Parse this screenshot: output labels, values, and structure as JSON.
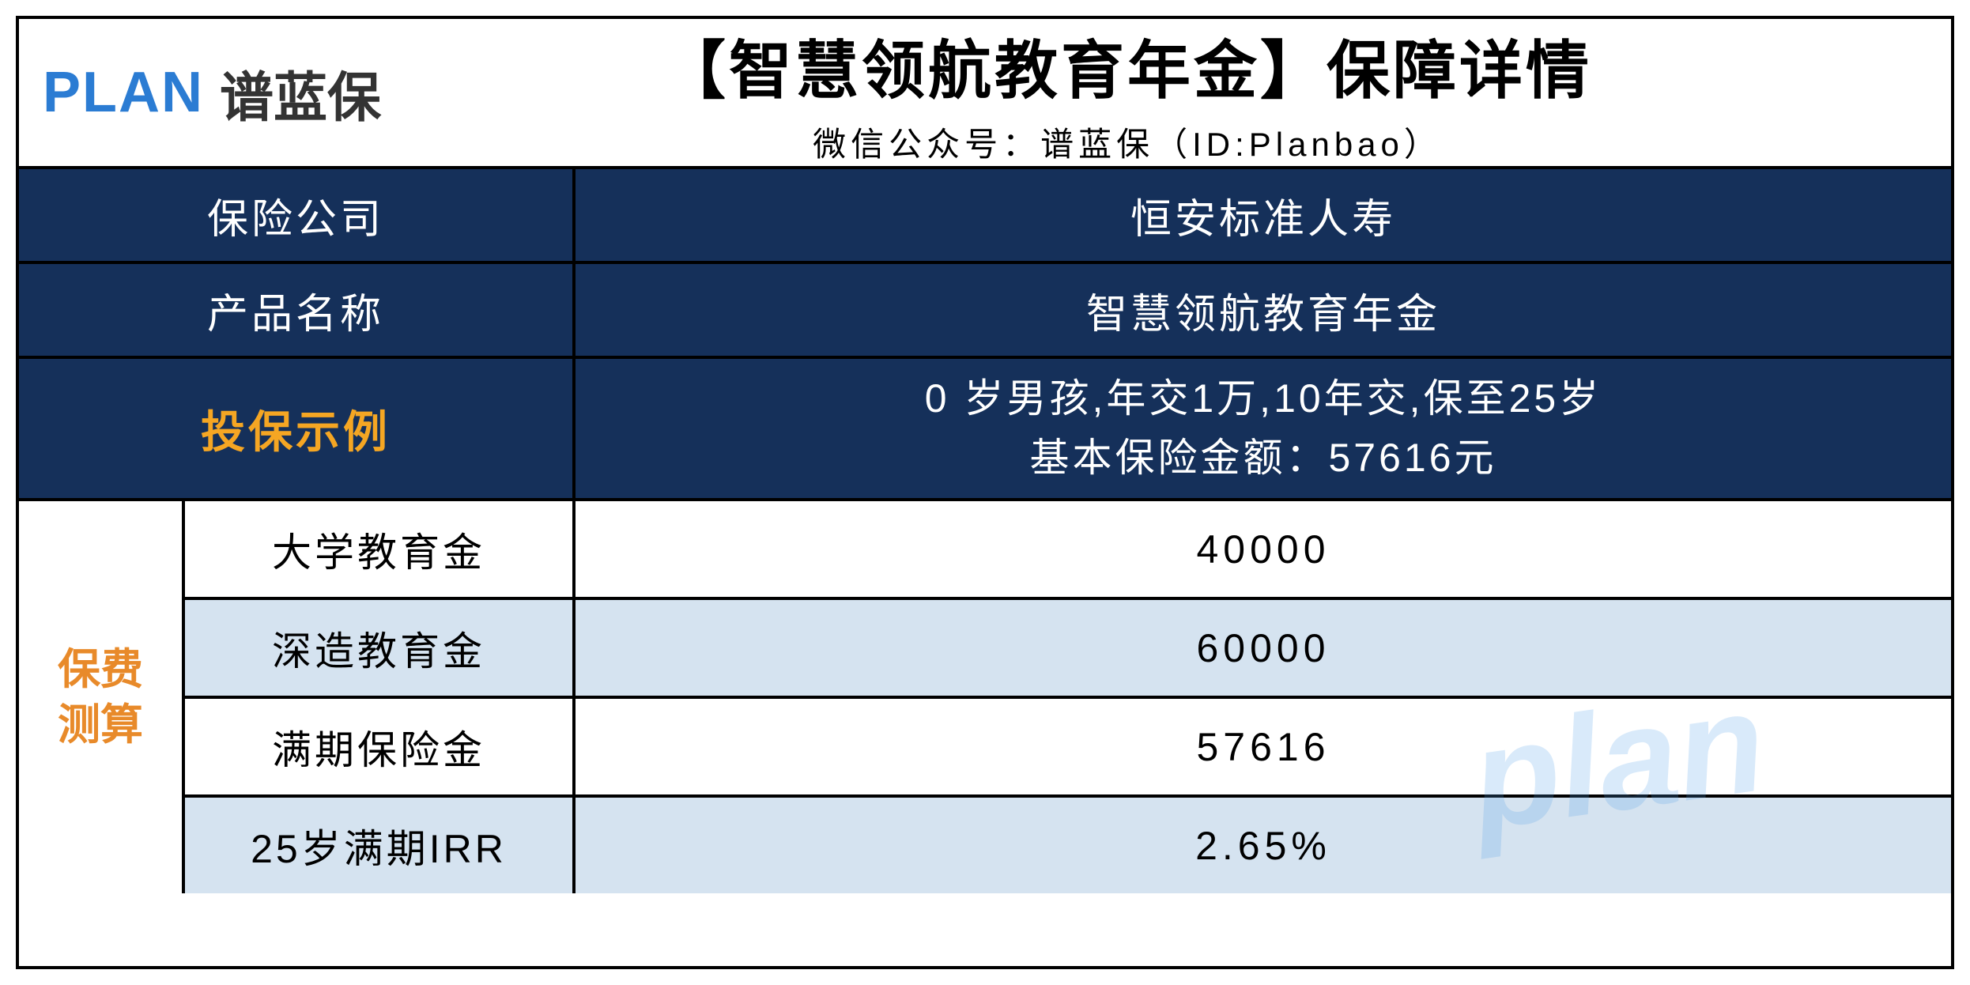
{
  "logo": {
    "en": "PLAN",
    "cn": "谱蓝保"
  },
  "header": {
    "title": "【智慧领航教育年金】保障详情",
    "subtitle": "微信公众号：谱蓝保（ID:Planbao）"
  },
  "info": {
    "company_label": "保险公司",
    "company_value": "恒安标准人寿",
    "product_label": "产品名称",
    "product_value": "智慧领航教育年金"
  },
  "example": {
    "label": "投保示例",
    "line1": "0 岁男孩,年交1万,10年交,保至25岁",
    "line2": "基本保险金额：57616元"
  },
  "calc": {
    "side_label_1": "保费",
    "side_label_2": "测算",
    "rows": [
      {
        "label": "大学教育金",
        "value": "40000",
        "bg": "white"
      },
      {
        "label": "深造教育金",
        "value": "60000",
        "bg": "lightblue"
      },
      {
        "label": "满期保险金",
        "value": "57616",
        "bg": "white"
      },
      {
        "label": "25岁满期IRR",
        "value": "2.65%",
        "bg": "lightblue"
      }
    ]
  },
  "watermark": "plan",
  "colors": {
    "navy": "#15305a",
    "lightblue": "#d5e3f0",
    "yellow": "#f5a623",
    "orange": "#e88a2a",
    "logo_blue": "#2b7cd3",
    "border": "#000000"
  }
}
